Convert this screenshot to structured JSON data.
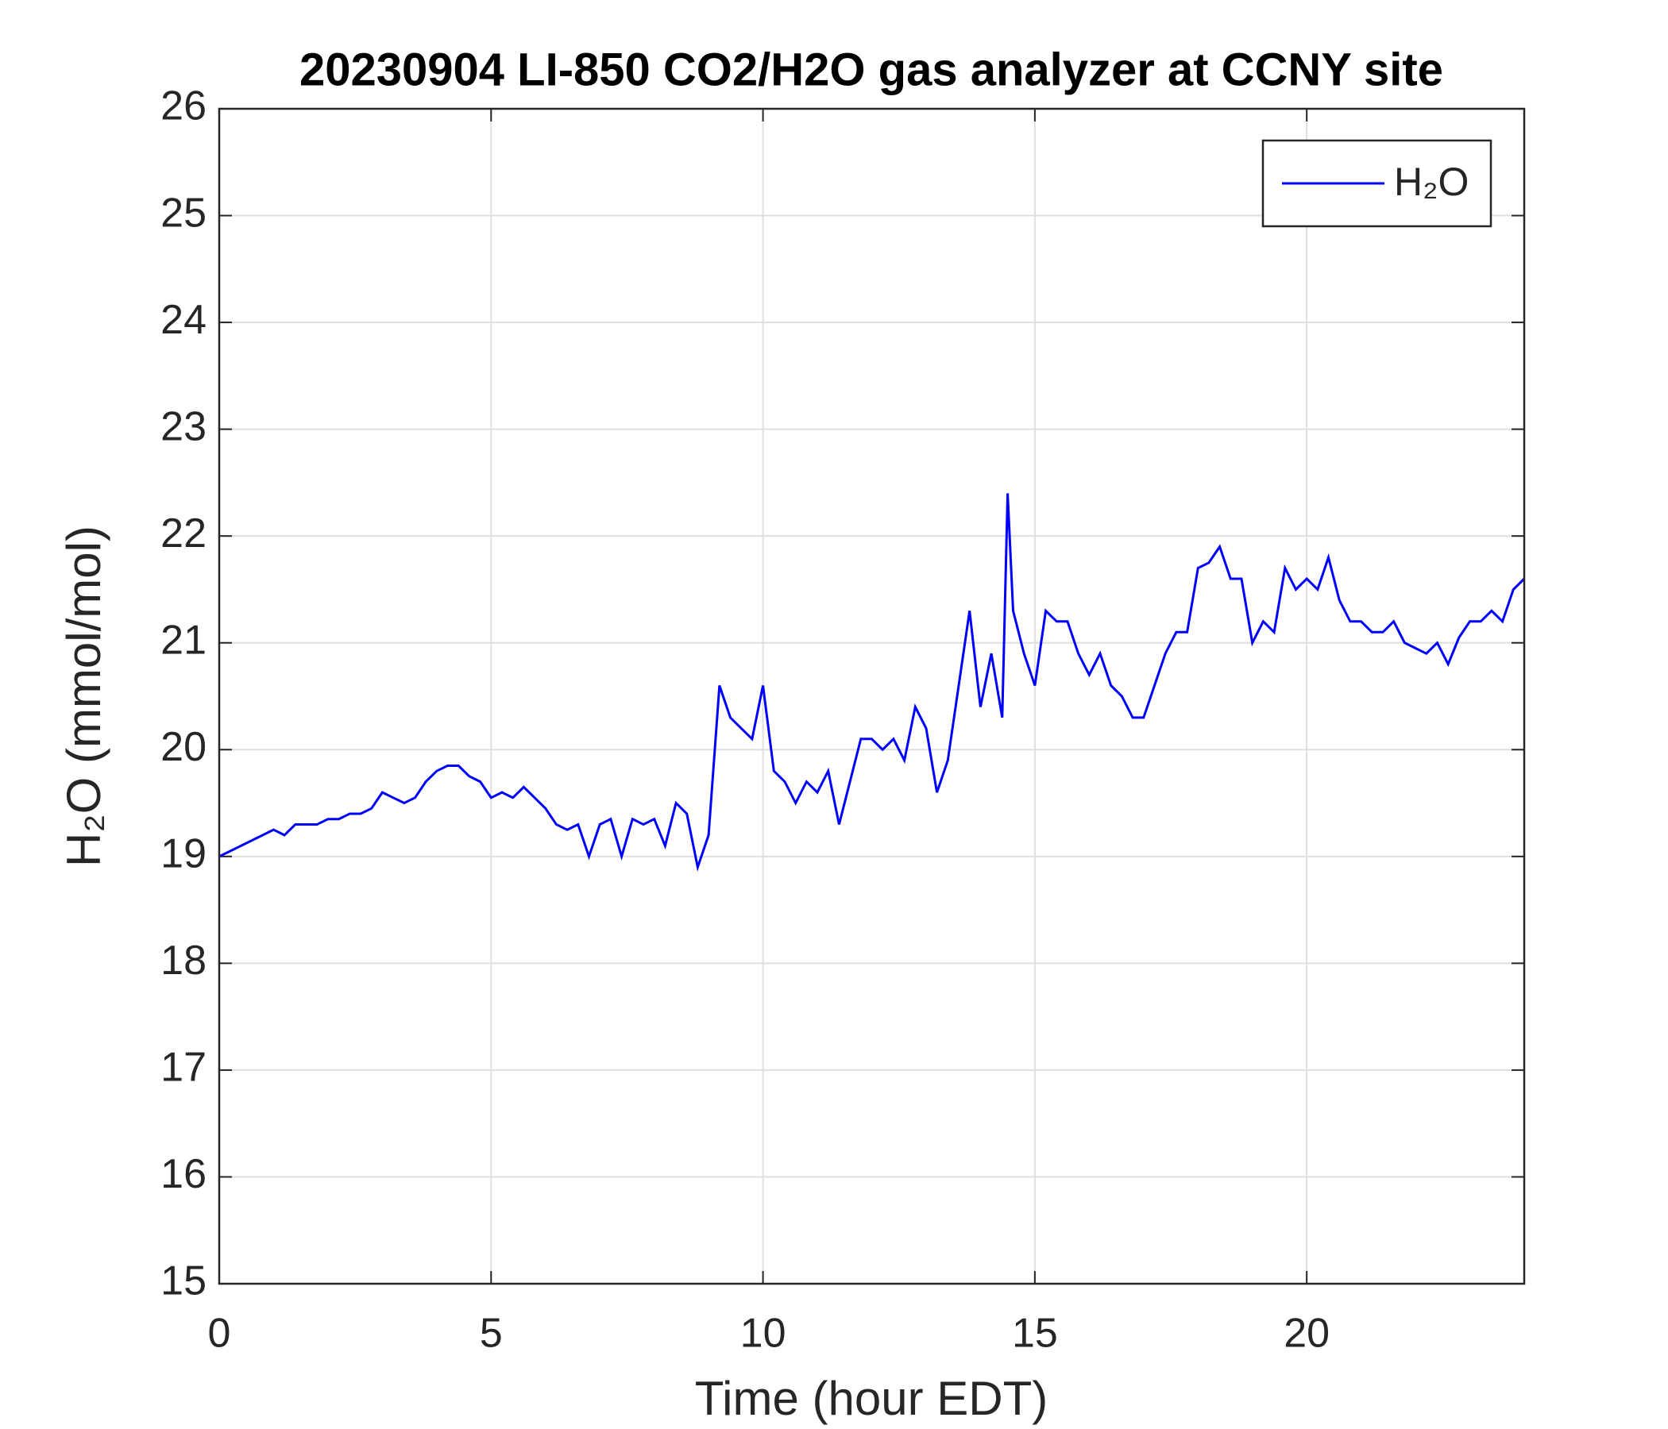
{
  "chart_data": {
    "type": "line",
    "title": "20230904 LI-850 CO2/H2O gas analyzer at CCNY site",
    "xlabel": "Time (hour EDT)",
    "ylabel": "H₂O (mmol/mol)",
    "xlim": [
      0,
      24
    ],
    "xticks": [
      0,
      5,
      10,
      15,
      20
    ],
    "ylim": [
      15,
      26
    ],
    "yticks": [
      15,
      16,
      17,
      18,
      19,
      20,
      21,
      22,
      23,
      24,
      25,
      26
    ],
    "grid": true,
    "legend": "upper right",
    "x": [
      0,
      0.2,
      0.4,
      0.6,
      0.8,
      1.0,
      1.2,
      1.4,
      1.6,
      1.8,
      2.0,
      2.2,
      2.4,
      2.6,
      2.8,
      3.0,
      3.2,
      3.4,
      3.6,
      3.8,
      4.0,
      4.2,
      4.4,
      4.6,
      4.8,
      5.0,
      5.2,
      5.4,
      5.6,
      5.8,
      6.0,
      6.2,
      6.4,
      6.6,
      6.8,
      7.0,
      7.2,
      7.4,
      7.6,
      7.8,
      8.0,
      8.2,
      8.4,
      8.6,
      8.8,
      9.0,
      9.2,
      9.4,
      9.6,
      9.8,
      10.0,
      10.2,
      10.4,
      10.6,
      10.8,
      11.0,
      11.2,
      11.4,
      11.6,
      11.8,
      12.0,
      12.2,
      12.4,
      12.6,
      12.8,
      13.0,
      13.2,
      13.4,
      13.6,
      13.8,
      14.0,
      14.2,
      14.4,
      14.5,
      14.6,
      14.8,
      15.0,
      15.2,
      15.4,
      15.6,
      15.8,
      16.0,
      16.2,
      16.4,
      16.6,
      16.8,
      17.0,
      17.2,
      17.4,
      17.6,
      17.8,
      18.0,
      18.2,
      18.4,
      18.6,
      18.8,
      19.0,
      19.2,
      19.4,
      19.6,
      19.8,
      20.0,
      20.2,
      20.4,
      20.6,
      20.8,
      21.0,
      21.2,
      21.4,
      21.6,
      21.8,
      22.0,
      22.2,
      22.4,
      22.6,
      22.8,
      23.0,
      23.2,
      23.4,
      23.6,
      23.8,
      24.0
    ],
    "series": [
      {
        "name": "H₂O",
        "color": "#0000ff",
        "values": [
          19.0,
          19.05,
          19.1,
          19.15,
          19.2,
          19.25,
          19.2,
          19.3,
          19.3,
          19.3,
          19.35,
          19.35,
          19.4,
          19.4,
          19.45,
          19.6,
          19.55,
          19.5,
          19.55,
          19.7,
          19.8,
          19.85,
          19.85,
          19.75,
          19.7,
          19.55,
          19.6,
          19.55,
          19.65,
          19.55,
          19.45,
          19.3,
          19.25,
          19.3,
          19.0,
          19.3,
          19.35,
          19.0,
          19.35,
          19.3,
          19.35,
          19.1,
          19.5,
          19.4,
          18.9,
          19.2,
          20.6,
          20.3,
          20.2,
          20.1,
          20.6,
          19.8,
          19.7,
          19.5,
          19.7,
          19.6,
          19.8,
          19.3,
          19.7,
          20.1,
          20.1,
          20.0,
          20.1,
          19.9,
          20.4,
          20.2,
          19.6,
          19.9,
          20.6,
          21.3,
          20.4,
          20.9,
          20.3,
          22.4,
          21.3,
          20.9,
          20.6,
          21.3,
          21.2,
          21.2,
          20.9,
          20.7,
          20.9,
          20.6,
          20.5,
          20.3,
          20.3,
          20.6,
          20.9,
          21.1,
          21.1,
          21.7,
          21.75,
          21.9,
          21.6,
          21.6,
          21.0,
          21.2,
          21.1,
          21.7,
          21.5,
          21.6,
          21.5,
          21.8,
          21.4,
          21.2,
          21.2,
          21.1,
          21.1,
          21.2,
          21.0,
          20.95,
          20.9,
          21.0,
          20.8,
          21.05,
          21.2,
          21.2,
          21.3,
          21.2,
          21.5,
          21.6
        ]
      }
    ]
  }
}
